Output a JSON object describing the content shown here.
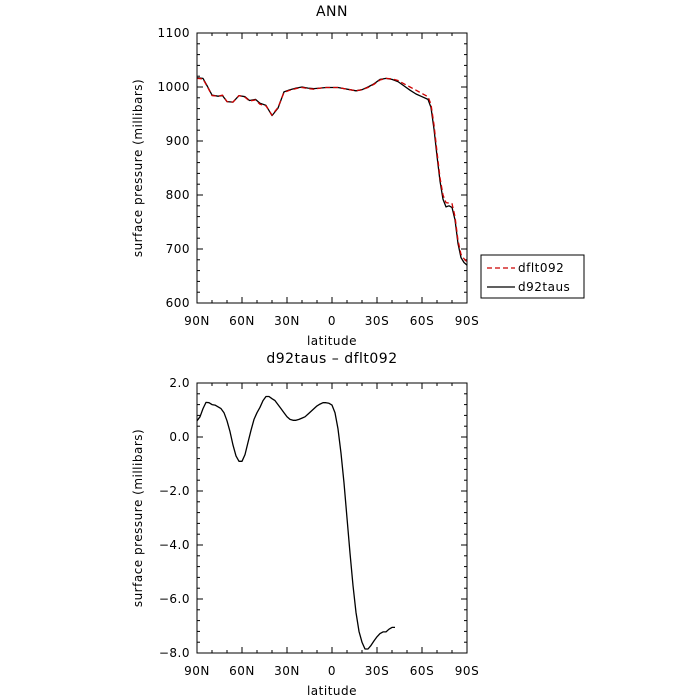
{
  "chart_data": [
    {
      "type": "line",
      "title": "ANN",
      "xlabel": "latitude",
      "ylabel": "surface pressure (millibars)",
      "xlim": [
        90,
        -90
      ],
      "ylim": [
        600,
        1100
      ],
      "xticks": [
        {
          "value": 90,
          "label": "90N"
        },
        {
          "value": 60,
          "label": "60N"
        },
        {
          "value": 30,
          "label": "30N"
        },
        {
          "value": 0,
          "label": "0"
        },
        {
          "value": -30,
          "label": "30S"
        },
        {
          "value": -60,
          "label": "60S"
        },
        {
          "value": -90,
          "label": "90S"
        }
      ],
      "yticks": [
        {
          "value": 600,
          "label": "600"
        },
        {
          "value": 700,
          "label": "700"
        },
        {
          "value": 800,
          "label": "800"
        },
        {
          "value": 900,
          "label": "900"
        },
        {
          "value": 1000,
          "label": "1000"
        },
        {
          "value": 1100,
          "label": "1100"
        }
      ],
      "legend": {
        "placement": "right"
      },
      "series": [
        {
          "name": "dflt092",
          "color": "#cc0000",
          "dash": "dashed",
          "points": [
            [
              90,
              1016
            ],
            [
              86,
              1015
            ],
            [
              83,
              1000
            ],
            [
              80,
              984
            ],
            [
              76,
              983
            ],
            [
              73,
              985
            ],
            [
              70,
              973
            ],
            [
              66,
              972
            ],
            [
              62,
              984
            ],
            [
              58,
              981
            ],
            [
              55,
              974
            ],
            [
              51,
              976
            ],
            [
              48,
              968
            ],
            [
              44,
              965
            ],
            [
              40,
              948
            ],
            [
              36,
              962
            ],
            [
              32,
              990
            ],
            [
              28,
              994
            ],
            [
              24,
              997
            ],
            [
              20,
              999
            ],
            [
              16,
              997
            ],
            [
              12,
              996
            ],
            [
              8,
              998
            ],
            [
              4,
              999
            ],
            [
              0,
              999
            ],
            [
              -4,
              999
            ],
            [
              -8,
              997
            ],
            [
              -12,
              995
            ],
            [
              -16,
              993
            ],
            [
              -20,
              995
            ],
            [
              -24,
              999
            ],
            [
              -28,
              1005
            ],
            [
              -32,
              1013
            ],
            [
              -36,
              1016
            ],
            [
              -40,
              1015
            ],
            [
              -44,
              1012
            ],
            [
              -48,
              1006
            ],
            [
              -52,
              1000
            ],
            [
              -56,
              994
            ],
            [
              -60,
              988
            ],
            [
              -64,
              982
            ],
            [
              -66,
              968
            ],
            [
              -68,
              930
            ],
            [
              -70,
              880
            ],
            [
              -72,
              832
            ],
            [
              -74,
              800
            ],
            [
              -76,
              786
            ],
            [
              -78,
              785
            ],
            [
              -80,
              784
            ],
            [
              -82,
              760
            ],
            [
              -84,
              716
            ],
            [
              -86,
              690
            ],
            [
              -88,
              682
            ],
            [
              -90,
              676
            ]
          ]
        },
        {
          "name": "d92taus",
          "color": "#000000",
          "dash": "solid",
          "points": [
            [
              90,
              1017
            ],
            [
              86,
              1016
            ],
            [
              83,
              1001
            ],
            [
              80,
              985
            ],
            [
              76,
              983
            ],
            [
              73,
              984
            ],
            [
              70,
              973
            ],
            [
              66,
              972
            ],
            [
              62,
              984
            ],
            [
              58,
              982
            ],
            [
              55,
              975
            ],
            [
              51,
              977
            ],
            [
              48,
              970
            ],
            [
              44,
              966
            ],
            [
              40,
              947
            ],
            [
              36,
              961
            ],
            [
              32,
              991
            ],
            [
              28,
              995
            ],
            [
              24,
              998
            ],
            [
              20,
              1000
            ],
            [
              16,
              998
            ],
            [
              12,
              997
            ],
            [
              8,
              998
            ],
            [
              4,
              999
            ],
            [
              0,
              999
            ],
            [
              -4,
              999
            ],
            [
              -8,
              997
            ],
            [
              -12,
              995
            ],
            [
              -16,
              993
            ],
            [
              -20,
              995
            ],
            [
              -24,
              1000
            ],
            [
              -28,
              1006
            ],
            [
              -32,
              1014
            ],
            [
              -36,
              1016
            ],
            [
              -40,
              1014
            ],
            [
              -44,
              1010
            ],
            [
              -48,
              1002
            ],
            [
              -52,
              994
            ],
            [
              -56,
              987
            ],
            [
              -60,
              982
            ],
            [
              -64,
              977
            ],
            [
              -66,
              962
            ],
            [
              -68,
              922
            ],
            [
              -70,
              872
            ],
            [
              -72,
              826
            ],
            [
              -74,
              792
            ],
            [
              -76,
              778
            ],
            [
              -78,
              780
            ],
            [
              -80,
              777
            ],
            [
              -82,
              754
            ],
            [
              -84,
              710
            ],
            [
              -86,
              684
            ],
            [
              -88,
              675
            ],
            [
              -90,
              670
            ]
          ]
        }
      ]
    },
    {
      "type": "line",
      "title": "d92taus – dflt092",
      "xlabel": "latitude",
      "ylabel": "surface pressure (millibars)",
      "xlim": [
        90,
        -90
      ],
      "ylim": [
        -8,
        2
      ],
      "xticks": [
        {
          "value": 90,
          "label": "90N"
        },
        {
          "value": 60,
          "label": "60N"
        },
        {
          "value": 30,
          "label": "30N"
        },
        {
          "value": 0,
          "label": "0"
        },
        {
          "value": -30,
          "label": "30S"
        },
        {
          "value": -60,
          "label": "60S"
        },
        {
          "value": -90,
          "label": "90S"
        }
      ],
      "yticks": [
        {
          "value": -8,
          "label": "−8.0"
        },
        {
          "value": -6,
          "label": "−6.0"
        },
        {
          "value": -4,
          "label": "−4.0"
        },
        {
          "value": -2,
          "label": "−2.0"
        },
        {
          "value": 0,
          "label": "0.0"
        },
        {
          "value": 2,
          "label": "2.0"
        }
      ],
      "series": [
        {
          "color": "#000000",
          "dash": "solid",
          "points": [
            [
              90,
              0.6
            ],
            [
              88,
              0.75
            ],
            [
              86,
              1.05
            ],
            [
              84,
              1.28
            ],
            [
              82,
              1.27
            ],
            [
              80,
              1.2
            ],
            [
              78,
              1.18
            ],
            [
              76,
              1.12
            ],
            [
              74,
              1.05
            ],
            [
              72,
              0.9
            ],
            [
              70,
              0.6
            ],
            [
              68,
              0.2
            ],
            [
              66,
              -0.3
            ],
            [
              64,
              -0.7
            ],
            [
              62,
              -0.9
            ],
            [
              60,
              -0.9
            ],
            [
              58,
              -0.65
            ],
            [
              56,
              -0.2
            ],
            [
              54,
              0.25
            ],
            [
              52,
              0.65
            ],
            [
              50,
              0.9
            ],
            [
              48,
              1.1
            ],
            [
              46,
              1.35
            ],
            [
              44,
              1.5
            ],
            [
              42,
              1.5
            ],
            [
              40,
              1.42
            ],
            [
              38,
              1.35
            ],
            [
              36,
              1.2
            ],
            [
              34,
              1.05
            ],
            [
              32,
              0.9
            ],
            [
              30,
              0.75
            ],
            [
              28,
              0.65
            ],
            [
              26,
              0.62
            ],
            [
              24,
              0.62
            ],
            [
              22,
              0.65
            ],
            [
              20,
              0.7
            ],
            [
              18,
              0.75
            ],
            [
              16,
              0.85
            ],
            [
              14,
              0.95
            ],
            [
              12,
              1.05
            ],
            [
              10,
              1.15
            ],
            [
              8,
              1.22
            ],
            [
              6,
              1.27
            ],
            [
              4,
              1.27
            ],
            [
              2,
              1.25
            ],
            [
              0,
              1.18
            ],
            [
              -2,
              0.9
            ],
            [
              -4,
              0.3
            ],
            [
              -6,
              -0.6
            ],
            [
              -8,
              -1.7
            ],
            [
              -10,
              -3.0
            ],
            [
              -12,
              -4.3
            ],
            [
              -14,
              -5.5
            ],
            [
              -16,
              -6.5
            ],
            [
              -18,
              -7.2
            ],
            [
              -20,
              -7.6
            ],
            [
              -22,
              -7.85
            ],
            [
              -24,
              -7.85
            ],
            [
              -26,
              -7.72
            ],
            [
              -28,
              -7.55
            ],
            [
              -30,
              -7.4
            ],
            [
              -32,
              -7.28
            ],
            [
              -34,
              -7.22
            ],
            [
              -36,
              -7.22
            ],
            [
              -38,
              -7.12
            ],
            [
              -40,
              -7.05
            ],
            [
              -42,
              -7.05
            ]
          ]
        }
      ]
    }
  ]
}
